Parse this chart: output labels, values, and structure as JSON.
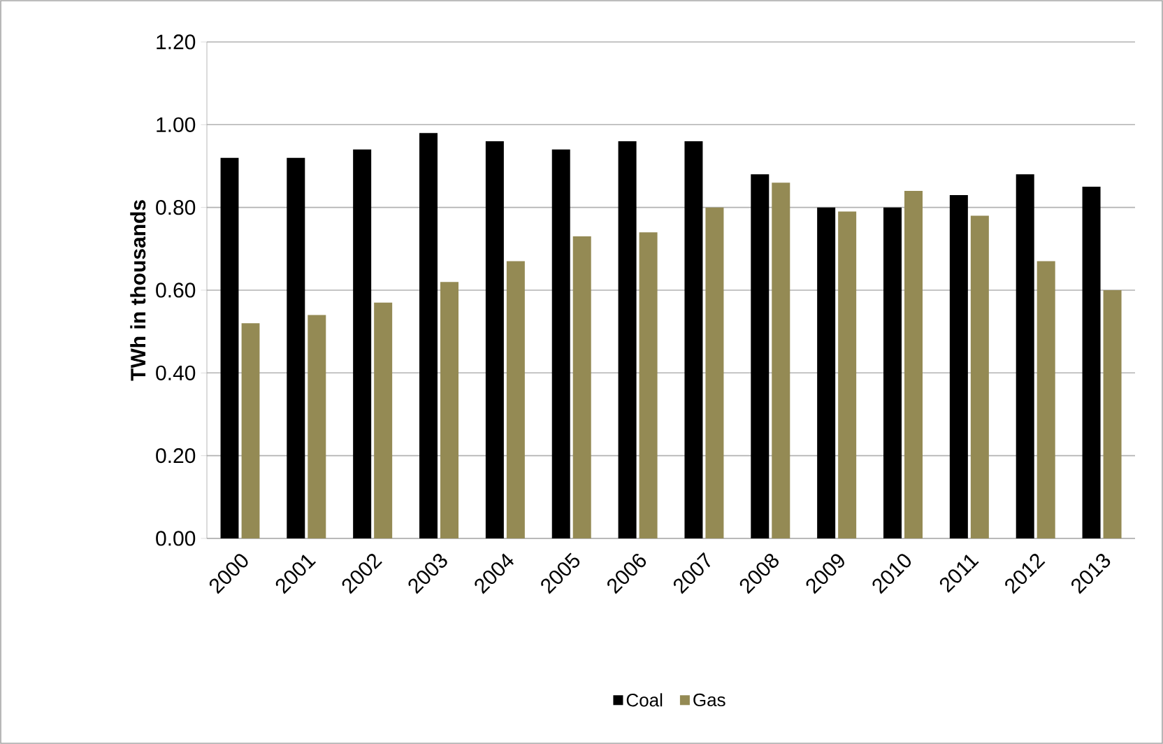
{
  "chart_data": {
    "type": "bar",
    "ylabel": "TWh in thousands",
    "categories": [
      "2000",
      "2001",
      "2002",
      "2003",
      "2004",
      "2005",
      "2006",
      "2007",
      "2008",
      "2009",
      "2010",
      "2011",
      "2012",
      "2013"
    ],
    "series": [
      {
        "name": "Coal",
        "color": "#000000",
        "values": [
          0.92,
          0.92,
          0.94,
          0.98,
          0.96,
          0.94,
          0.96,
          0.96,
          0.88,
          0.8,
          0.8,
          0.83,
          0.88,
          0.85
        ]
      },
      {
        "name": "Gas",
        "color": "#948a54",
        "values": [
          0.52,
          0.54,
          0.57,
          0.62,
          0.67,
          0.73,
          0.74,
          0.8,
          0.86,
          0.79,
          0.84,
          0.78,
          0.67,
          0.6
        ]
      }
    ],
    "ylim": [
      0,
      1.2
    ],
    "yticks": [
      {
        "value": 0,
        "label": "0.00"
      },
      {
        "value": 0.2,
        "label": "0.20"
      },
      {
        "value": 0.4,
        "label": "0.40"
      },
      {
        "value": 0.6,
        "label": "0.60"
      },
      {
        "value": 0.8,
        "label": "0.80"
      },
      {
        "value": 1.0,
        "label": "1.00"
      },
      {
        "value": 1.2,
        "label": "1.20"
      }
    ],
    "grid": "y",
    "legend": "bottom"
  }
}
